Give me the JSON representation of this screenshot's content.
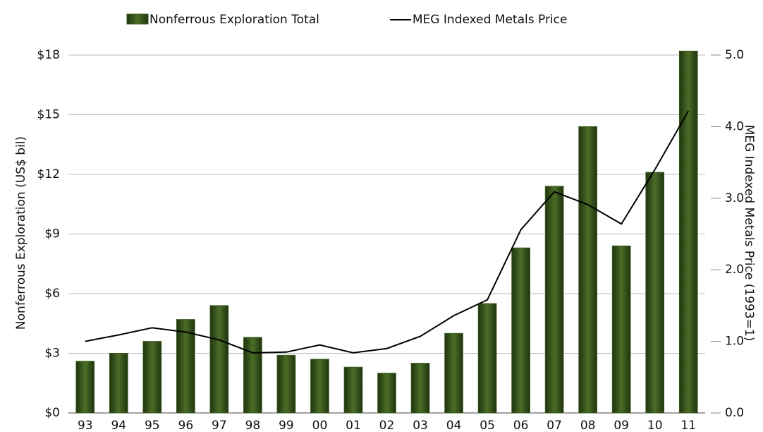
{
  "chart_data": {
    "type": "bar_line",
    "y_label": "Nonferrous Exploration (US$ bil)",
    "y2_label": "MEG Indexed Metals Price (1993=1)",
    "categories": [
      "93",
      "94",
      "95",
      "96",
      "97",
      "98",
      "99",
      "00",
      "01",
      "02",
      "03",
      "04",
      "05",
      "06",
      "07",
      "08",
      "09",
      "10",
      "11"
    ],
    "series": [
      {
        "name": "Nonferrous Exploration Total",
        "type": "bar",
        "color": "#3b5a1c",
        "values": [
          2.6,
          3.0,
          3.6,
          4.7,
          5.4,
          3.8,
          2.9,
          2.7,
          2.3,
          2.0,
          2.5,
          4.0,
          5.5,
          8.3,
          11.4,
          14.4,
          8.4,
          12.1,
          18.2
        ]
      },
      {
        "name": "MEG Indexed Metals Price",
        "type": "line",
        "color": "#000000",
        "axis": "y2",
        "values": [
          1.0,
          1.09,
          1.19,
          1.13,
          1.02,
          0.84,
          0.85,
          0.95,
          0.84,
          0.9,
          1.07,
          1.36,
          1.58,
          2.56,
          3.09,
          2.91,
          2.64,
          3.4,
          4.22
        ]
      }
    ],
    "ylim": [
      0,
      18
    ],
    "yticks": [
      {
        "value": 0,
        "label": "$0"
      },
      {
        "value": 3,
        "label": "$3"
      },
      {
        "value": 6,
        "label": "$6"
      },
      {
        "value": 9,
        "label": "$9"
      },
      {
        "value": 12,
        "label": "$12"
      },
      {
        "value": 15,
        "label": "$15"
      },
      {
        "value": 18,
        "label": "$18"
      }
    ],
    "y2lim": [
      0,
      5
    ],
    "y2ticks": [
      {
        "value": 0,
        "label": "0.0"
      },
      {
        "value": 1,
        "label": "1.0"
      },
      {
        "value": 2,
        "label": "2.0"
      },
      {
        "value": 3,
        "label": "3.0"
      },
      {
        "value": 4,
        "label": "4.0"
      },
      {
        "value": 5,
        "label": "5.0"
      }
    ],
    "grid": true
  }
}
